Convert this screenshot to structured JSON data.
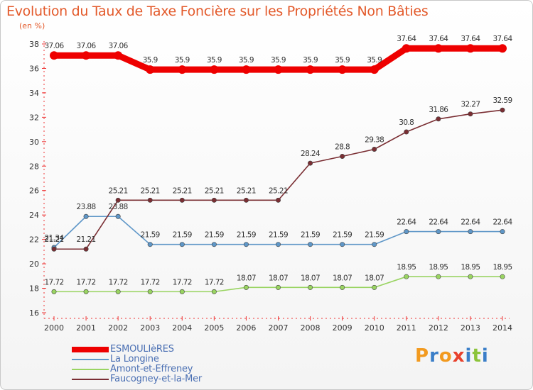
{
  "title": "Evolution du Taux de Taxe Foncière sur les Propriétés Non Bâties",
  "subtitle": "(en %)",
  "logo": {
    "letters": [
      "P",
      "r",
      "o",
      "x",
      "i",
      "t",
      "i"
    ],
    "colors": [
      "#f29a1f",
      "#3a7ec8",
      "#f29a1f",
      "#e8412c",
      "#3a7ec8",
      "#8cc43a",
      "#3a7ec8"
    ]
  },
  "chart_data": {
    "type": "line",
    "x": [
      "2000",
      "2001",
      "2002",
      "2003",
      "2004",
      "2005",
      "2006",
      "2007",
      "2008",
      "2009",
      "2010",
      "2011",
      "2012",
      "2013",
      "2014"
    ],
    "ylim": [
      16,
      38
    ],
    "yticks": [
      "16",
      "18",
      "20",
      "22",
      "24",
      "26",
      "28",
      "30",
      "32",
      "34",
      "36",
      "38"
    ],
    "series": [
      {
        "name": "ESMOULIèRES",
        "color": "#ee0000",
        "width": "thick",
        "values": [
          37.06,
          37.06,
          37.06,
          35.9,
          35.9,
          35.9,
          35.9,
          35.9,
          35.9,
          35.9,
          35.9,
          37.64,
          37.64,
          37.64,
          37.64
        ],
        "labels": [
          "37.06",
          "37.06",
          "37.06",
          "35.9",
          "35.9",
          "35.9",
          "35.9",
          "35.9",
          "35.9",
          "35.9",
          "35.9",
          "37.64",
          "37.64",
          "37.64",
          "37.64"
        ]
      },
      {
        "name": "La Longine",
        "color": "#5f97c8",
        "width": "thin",
        "values": [
          21.34,
          23.88,
          23.88,
          21.59,
          21.59,
          21.59,
          21.59,
          21.59,
          21.59,
          21.59,
          21.59,
          22.64,
          22.64,
          22.64,
          22.64
        ],
        "labels": [
          "21.34",
          "23.88",
          "23.88",
          "21.59",
          "21.59",
          "21.59",
          "21.59",
          "21.59",
          "21.59",
          "21.59",
          "21.59",
          "22.64",
          "22.64",
          "22.64",
          "22.64"
        ]
      },
      {
        "name": "Amont-et-Effreney",
        "color": "#99d461",
        "width": "thin",
        "values": [
          17.72,
          17.72,
          17.72,
          17.72,
          17.72,
          17.72,
          18.07,
          18.07,
          18.07,
          18.07,
          18.07,
          18.95,
          18.95,
          18.95,
          18.95
        ],
        "labels": [
          "17.72",
          "17.72",
          "17.72",
          "17.72",
          "17.72",
          "17.72",
          "18.07",
          "18.07",
          "18.07",
          "18.07",
          "18.07",
          "18.95",
          "18.95",
          "18.95",
          "18.95"
        ]
      },
      {
        "name": "Faucogney-et-la-Mer",
        "color": "#7a2e33",
        "width": "thin",
        "values": [
          21.21,
          21.21,
          25.21,
          25.21,
          25.21,
          25.21,
          25.21,
          25.21,
          28.24,
          28.8,
          29.38,
          30.8,
          31.86,
          32.27,
          32.59
        ],
        "labels": [
          "21.21",
          "21.21",
          "25.21",
          "25.21",
          "25.21",
          "25.21",
          "25.21",
          "25.21",
          "28.24",
          "28.8",
          "29.38",
          "30.8",
          "31.86",
          "32.27",
          "32.59"
        ]
      }
    ],
    "grid": false,
    "legend_position": "bottom-left"
  }
}
